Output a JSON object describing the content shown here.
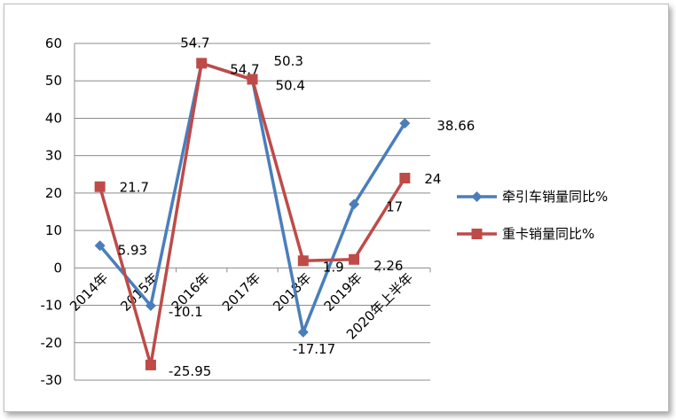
{
  "chart_data": {
    "type": "line",
    "title": "",
    "xlabel": "",
    "ylabel": "",
    "ylim": [
      -30,
      60
    ],
    "yticks": [
      60,
      50,
      40,
      30,
      20,
      10,
      0,
      -10,
      -20,
      -30
    ],
    "grid": true,
    "legend_position": "right",
    "categories": [
      "2014年",
      "2015年",
      "2016年",
      "2017年",
      "2018年",
      "2019年",
      "2020年上半年"
    ],
    "series": [
      {
        "name": "牵引车销量同比%",
        "color": "#4a7ebb",
        "marker": "diamond",
        "values": [
          5.93,
          -10.1,
          54.7,
          50.3,
          -17.17,
          17,
          38.66
        ],
        "labels": [
          "5.93",
          "-10.1",
          "54.7",
          "50.3",
          "-17.17",
          "17",
          "38.66"
        ]
      },
      {
        "name": "重卡销量同比%",
        "color": "#be4b48",
        "marker": "square",
        "values": [
          21.7,
          -25.95,
          54.7,
          50.4,
          1.9,
          2.26,
          24
        ],
        "labels": [
          "21.7",
          "-25.95",
          "54.7",
          "50.4",
          "1.9",
          "2.26",
          "24"
        ]
      }
    ]
  }
}
